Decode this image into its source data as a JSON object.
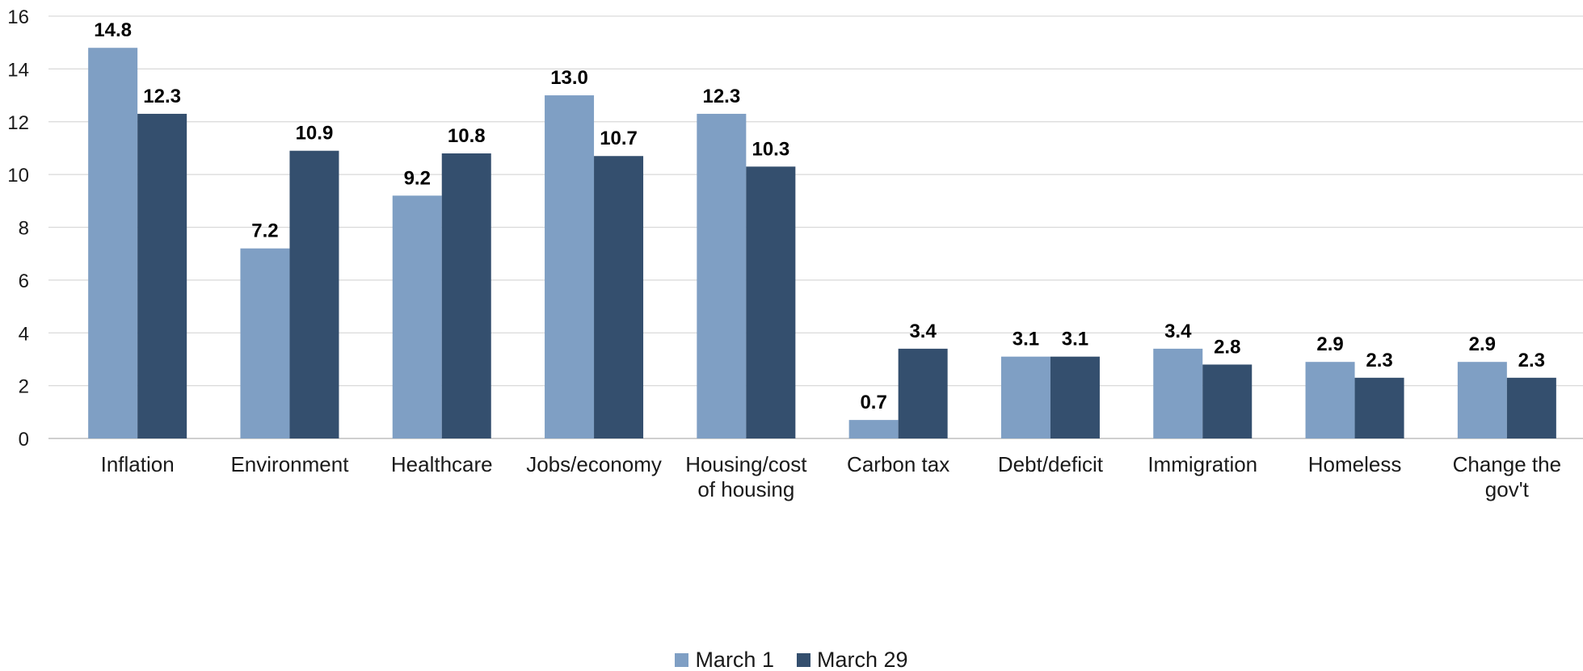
{
  "chart_data": {
    "type": "bar",
    "categories": [
      [
        "Inflation"
      ],
      [
        "Environment"
      ],
      [
        "Healthcare"
      ],
      [
        "Jobs/economy"
      ],
      [
        "Housing/cost",
        "of housing"
      ],
      [
        "Carbon tax"
      ],
      [
        "Debt/deficit"
      ],
      [
        "Immigration"
      ],
      [
        "Homeless"
      ],
      [
        "Change the",
        "gov't"
      ]
    ],
    "series": [
      {
        "name": "March 1",
        "color": "#7f9fc4",
        "values": [
          14.8,
          7.2,
          9.2,
          13.0,
          12.3,
          0.7,
          3.1,
          3.4,
          2.9,
          2.9
        ],
        "labels": [
          "14.8",
          "7.2",
          "9.2",
          "13.0",
          "12.3",
          "0.7",
          "3.1",
          "3.4",
          "2.9",
          "2.9"
        ]
      },
      {
        "name": "March 29",
        "color": "#344f6e",
        "values": [
          12.3,
          10.9,
          10.8,
          10.7,
          10.3,
          3.4,
          3.1,
          2.8,
          2.3,
          2.3
        ],
        "labels": [
          "12.3",
          "10.9",
          "10.8",
          "10.7",
          "10.3",
          "3.4",
          "3.1",
          "2.8",
          "2.3",
          "2.3"
        ]
      }
    ],
    "ylim": [
      0,
      16
    ],
    "yticks": [
      "0",
      "2",
      "4",
      "6",
      "8",
      "10",
      "12",
      "14",
      "16"
    ],
    "grid": true,
    "legend": "bottom-center"
  }
}
